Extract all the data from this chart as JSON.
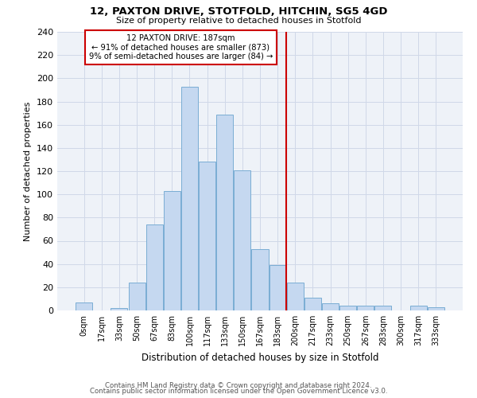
{
  "title": "12, PAXTON DRIVE, STOTFOLD, HITCHIN, SG5 4GD",
  "subtitle": "Size of property relative to detached houses in Stotfold",
  "xlabel": "Distribution of detached houses by size in Stotfold",
  "ylabel": "Number of detached properties",
  "bar_labels": [
    "0sqm",
    "17sqm",
    "33sqm",
    "50sqm",
    "67sqm",
    "83sqm",
    "100sqm",
    "117sqm",
    "133sqm",
    "150sqm",
    "167sqm",
    "183sqm",
    "200sqm",
    "217sqm",
    "233sqm",
    "250sqm",
    "267sqm",
    "283sqm",
    "300sqm",
    "317sqm",
    "333sqm"
  ],
  "bar_values": [
    7,
    0,
    2,
    24,
    74,
    103,
    193,
    128,
    169,
    121,
    53,
    39,
    24,
    11,
    6,
    4,
    4,
    4,
    0,
    4,
    3
  ],
  "bar_color": "#c5d8f0",
  "bar_edge_color": "#7aadd4",
  "vline_color": "#cc0000",
  "annotation_text": "12 PAXTON DRIVE: 187sqm\n← 91% of detached houses are smaller (873)\n9% of semi-detached houses are larger (84) →",
  "annotation_box_color": "#cc0000",
  "ylim": [
    0,
    240
  ],
  "yticks": [
    0,
    20,
    40,
    60,
    80,
    100,
    120,
    140,
    160,
    180,
    200,
    220,
    240
  ],
  "grid_color": "#d0d8e8",
  "bg_color": "#eef2f8",
  "footer1": "Contains HM Land Registry data © Crown copyright and database right 2024.",
  "footer2": "Contains public sector information licensed under the Open Government Licence v3.0."
}
